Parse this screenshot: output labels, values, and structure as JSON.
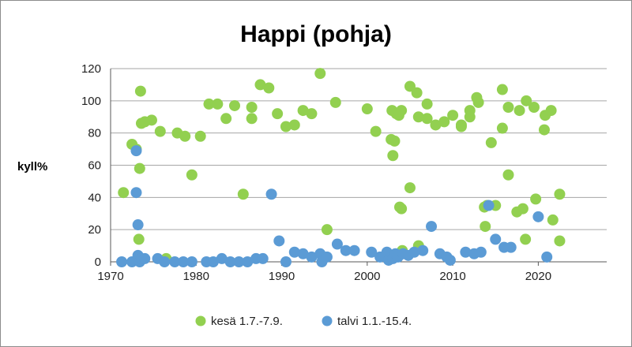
{
  "chart_data": {
    "type": "scatter",
    "title": "Happi (pohja)",
    "xlabel": "",
    "ylabel": "kyll%",
    "xlim": [
      1970,
      2028
    ],
    "ylim": [
      0,
      120
    ],
    "xticks": [
      1970,
      1980,
      1990,
      2000,
      2010,
      2020
    ],
    "yticks": [
      0,
      20,
      40,
      60,
      80,
      100,
      120
    ],
    "grid": true,
    "legend": "bottom",
    "series": [
      {
        "name": "kesä 1.7.-7.9.",
        "color": "#92d050",
        "points": [
          [
            1971.5,
            43
          ],
          [
            1972.5,
            73
          ],
          [
            1973.0,
            70
          ],
          [
            1973.3,
            14
          ],
          [
            1973.4,
            58
          ],
          [
            1973.5,
            106
          ],
          [
            1973.6,
            86
          ],
          [
            1974.0,
            87
          ],
          [
            1974.8,
            88
          ],
          [
            1975.8,
            81
          ],
          [
            1976.5,
            2
          ],
          [
            1977.8,
            80
          ],
          [
            1978.7,
            78
          ],
          [
            1979.5,
            54
          ],
          [
            1980.5,
            78
          ],
          [
            1981.5,
            98
          ],
          [
            1982.5,
            98
          ],
          [
            1983.5,
            89
          ],
          [
            1984.5,
            97
          ],
          [
            1985.5,
            42
          ],
          [
            1986.5,
            96
          ],
          [
            1986.5,
            89
          ],
          [
            1987.5,
            110
          ],
          [
            1988.5,
            108
          ],
          [
            1989.5,
            92
          ],
          [
            1990.5,
            84
          ],
          [
            1991.5,
            85
          ],
          [
            1992.5,
            94
          ],
          [
            1993.5,
            92
          ],
          [
            1994.5,
            117
          ],
          [
            1995.3,
            20
          ],
          [
            1996.3,
            99
          ],
          [
            2000.0,
            95
          ],
          [
            2001.0,
            81
          ],
          [
            2002.8,
            76
          ],
          [
            2002.9,
            94
          ],
          [
            2003.0,
            66
          ],
          [
            2003.2,
            75
          ],
          [
            2003.4,
            92
          ],
          [
            2003.7,
            91
          ],
          [
            2004.0,
            94
          ],
          [
            2003.8,
            34
          ],
          [
            2004.0,
            33
          ],
          [
            2004.1,
            7
          ],
          [
            2005.0,
            46
          ],
          [
            2005.0,
            109
          ],
          [
            2005.8,
            105
          ],
          [
            2006.0,
            10
          ],
          [
            2006.0,
            90
          ],
          [
            2007.0,
            89
          ],
          [
            2007.0,
            98
          ],
          [
            2008.0,
            85
          ],
          [
            2009.0,
            87
          ],
          [
            2010.0,
            91
          ],
          [
            2011.0,
            85
          ],
          [
            2011.0,
            84
          ],
          [
            2012.0,
            94
          ],
          [
            2012.0,
            90
          ],
          [
            2012.8,
            102
          ],
          [
            2013.0,
            99
          ],
          [
            2013.7,
            34
          ],
          [
            2013.8,
            22
          ],
          [
            2014.0,
            35
          ],
          [
            2014.5,
            74
          ],
          [
            2015.0,
            35
          ],
          [
            2015.8,
            107
          ],
          [
            2015.8,
            83
          ],
          [
            2016.5,
            96
          ],
          [
            2016.5,
            54
          ],
          [
            2017.5,
            31
          ],
          [
            2017.8,
            94
          ],
          [
            2018.2,
            33
          ],
          [
            2018.5,
            14
          ],
          [
            2018.6,
            100
          ],
          [
            2019.5,
            96
          ],
          [
            2019.7,
            39
          ],
          [
            2020.7,
            82
          ],
          [
            2020.8,
            91
          ],
          [
            2021.5,
            94
          ],
          [
            2021.7,
            26
          ],
          [
            2022.5,
            42
          ],
          [
            2022.5,
            13
          ]
        ]
      },
      {
        "name": "talvi 1.1.-15.4.",
        "color": "#5b9bd5",
        "points": [
          [
            1971.3,
            0
          ],
          [
            1972.5,
            0
          ],
          [
            1973.0,
            69
          ],
          [
            1973.0,
            43
          ],
          [
            1973.2,
            23
          ],
          [
            1973.2,
            4
          ],
          [
            1973.4,
            0
          ],
          [
            1973.6,
            2
          ],
          [
            1974.0,
            2
          ],
          [
            1975.5,
            2
          ],
          [
            1976.3,
            0
          ],
          [
            1977.5,
            0
          ],
          [
            1978.5,
            0
          ],
          [
            1979.5,
            0
          ],
          [
            1981.2,
            0
          ],
          [
            1982.0,
            0
          ],
          [
            1983.0,
            2
          ],
          [
            1984.0,
            0
          ],
          [
            1985.0,
            0
          ],
          [
            1986.0,
            0
          ],
          [
            1987.0,
            2
          ],
          [
            1987.8,
            2
          ],
          [
            1988.8,
            42
          ],
          [
            1989.7,
            13
          ],
          [
            1990.5,
            0
          ],
          [
            1991.5,
            6
          ],
          [
            1992.5,
            5
          ],
          [
            1993.5,
            3
          ],
          [
            1994.5,
            5
          ],
          [
            1994.7,
            0
          ],
          [
            1995.3,
            3
          ],
          [
            1996.5,
            11
          ],
          [
            1997.5,
            7
          ],
          [
            1998.5,
            7
          ],
          [
            2000.5,
            6
          ],
          [
            2001.5,
            3
          ],
          [
            2002.3,
            6
          ],
          [
            2002.5,
            1
          ],
          [
            2003.0,
            2
          ],
          [
            2003.3,
            5
          ],
          [
            2003.6,
            3
          ],
          [
            2004.2,
            5
          ],
          [
            2004.8,
            4
          ],
          [
            2005.5,
            6
          ],
          [
            2006.5,
            7
          ],
          [
            2007.5,
            22
          ],
          [
            2008.5,
            5
          ],
          [
            2009.3,
            3
          ],
          [
            2009.7,
            1
          ],
          [
            2011.5,
            6
          ],
          [
            2012.5,
            5
          ],
          [
            2013.3,
            6
          ],
          [
            2014.2,
            35
          ],
          [
            2015.0,
            14
          ],
          [
            2016.0,
            9
          ],
          [
            2016.8,
            9
          ],
          [
            2020.0,
            28
          ],
          [
            2021.0,
            3
          ]
        ]
      }
    ]
  }
}
